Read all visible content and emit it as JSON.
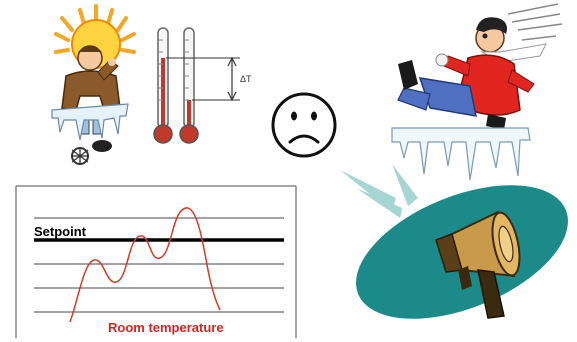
{
  "thermometers": {
    "delta_label": "ΔT"
  },
  "chart": {
    "setpoint_label": "Setpoint",
    "room_temperature_label": "Room temperature",
    "colors": {
      "setpoint": "#000000",
      "room_temperature": "#cc2a1f"
    }
  },
  "icons": {
    "sun_person": "hot-person-with-sun-icon",
    "thermometers": "two-thermometers-icon",
    "sad_face": "sad-face-icon",
    "cold_person": "freezing-person-on-ice-icon",
    "megaphone": "megaphone-alarm-icon"
  }
}
